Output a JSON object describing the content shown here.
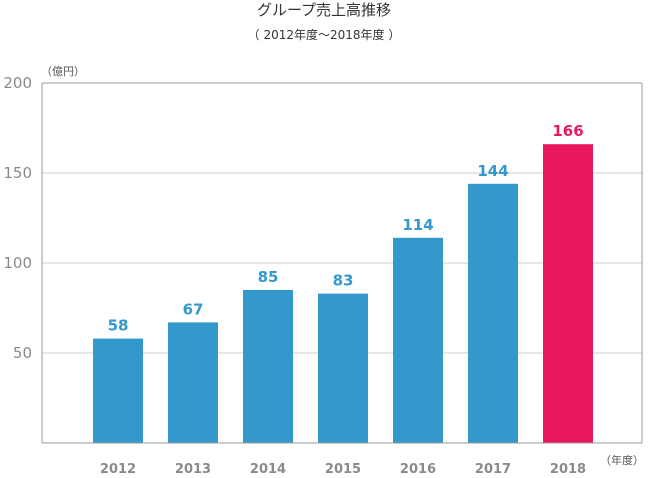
{
  "chart_data": {
    "type": "bar",
    "title": "グループ売上高推移",
    "subtitle": "（ 2012年度～2018年度 ）",
    "ylabel": "（億円）",
    "xlabel": "（年度）",
    "categories": [
      "2012",
      "2013",
      "2014",
      "2015",
      "2016",
      "2017",
      "2018"
    ],
    "values": [
      58,
      67,
      85,
      83,
      114,
      144,
      166
    ],
    "data_labels": [
      "58",
      "67",
      "85",
      "83",
      "114",
      "144",
      "166"
    ],
    "ylim": [
      0,
      200
    ],
    "yticks": [
      50,
      100,
      150,
      200
    ],
    "ytick_labels": [
      "50",
      "100",
      "150",
      "200"
    ],
    "grid": true,
    "colors": {
      "bar": "#3399cc",
      "highlight_bar": "#e8195e",
      "label": "#3399cc",
      "highlight_label": "#e8195e",
      "grid": "#cccccc",
      "axis": "#999999"
    },
    "highlight_index": 6
  }
}
